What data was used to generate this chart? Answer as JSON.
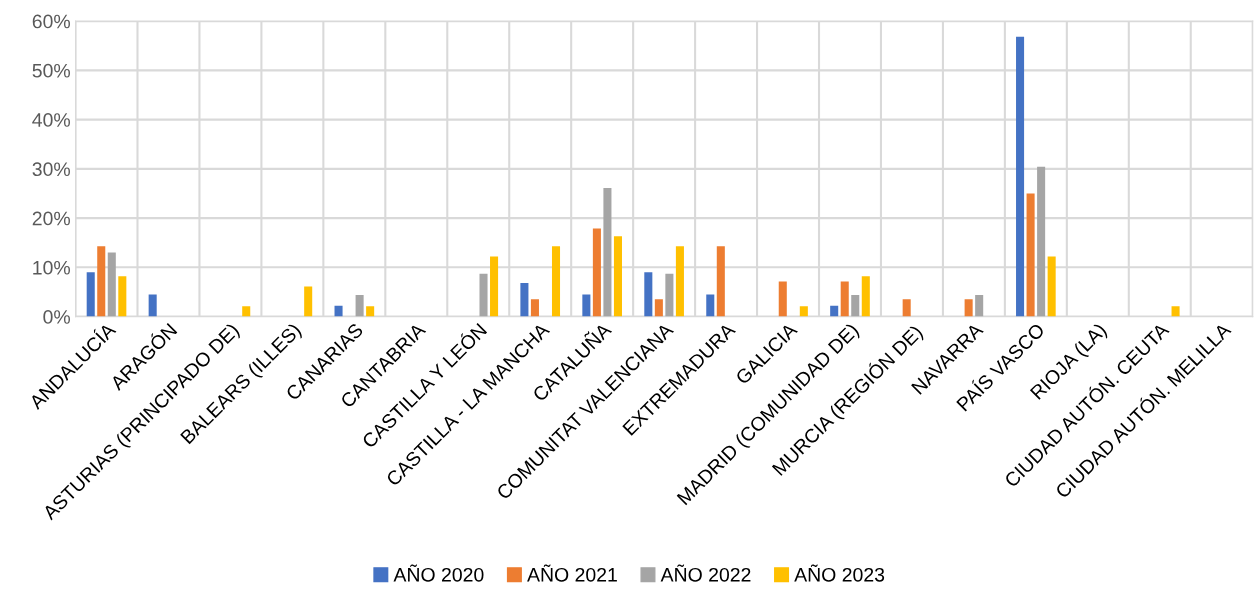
{
  "chart_data": {
    "type": "bar",
    "categories": [
      "ANDALUCÍA",
      "ARAGÓN",
      "ASTURIAS (PRINCIPADO DE)",
      "BALEARS (ILLES)",
      "CANARIAS",
      "CANTABRIA",
      "CASTILLA Y LEÓN",
      "CASTILLA - LA MANCHA",
      "CATALUÑA",
      "COMUNITAT VALENCIANA",
      "EXTREMADURA",
      "GALICIA",
      "MADRID (COMUNIDAD DE)",
      "MURCIA (REGIÓN DE)",
      "NAVARRA",
      "PAÍS VASCO",
      "RIOJA (LA)",
      "CIUDAD AUTÓN. CEUTA",
      "CIUDAD AUTÓN. MELILLA"
    ],
    "series": [
      {
        "name": "AÑO 2020",
        "color": "#4472c4",
        "values": [
          9.0,
          4.5,
          0,
          0,
          2.2,
          0,
          0,
          6.8,
          4.5,
          9.0,
          4.5,
          0,
          2.2,
          0,
          0,
          56.8,
          0,
          0,
          0
        ]
      },
      {
        "name": "AÑO 2021",
        "color": "#ed7d31",
        "values": [
          14.3,
          0,
          0,
          0,
          0,
          0,
          0,
          3.5,
          17.9,
          3.5,
          14.3,
          7.1,
          7.1,
          3.5,
          3.5,
          25.0,
          0,
          0,
          0
        ]
      },
      {
        "name": "AÑO 2022",
        "color": "#a5a5a5",
        "values": [
          13.0,
          0,
          0,
          0,
          4.4,
          0,
          8.7,
          0,
          26.1,
          8.7,
          0,
          0,
          4.4,
          0,
          4.4,
          30.4,
          0,
          0,
          0
        ]
      },
      {
        "name": "AÑO 2023",
        "color": "#ffc000",
        "values": [
          8.2,
          0,
          2.1,
          6.1,
          2.1,
          0,
          12.2,
          14.3,
          16.3,
          14.3,
          0,
          2.1,
          8.2,
          0,
          0,
          12.2,
          0,
          2.1,
          0
        ]
      }
    ],
    "ylim": [
      0,
      60
    ],
    "yticks": [
      {
        "value": 0,
        "label": "0%"
      },
      {
        "value": 10,
        "label": "10%"
      },
      {
        "value": 20,
        "label": "20%"
      },
      {
        "value": 30,
        "label": "30%"
      },
      {
        "value": 40,
        "label": "40%"
      },
      {
        "value": 50,
        "label": "50%"
      },
      {
        "value": 60,
        "label": "60%"
      }
    ],
    "grid": true,
    "legend": "bottom"
  }
}
